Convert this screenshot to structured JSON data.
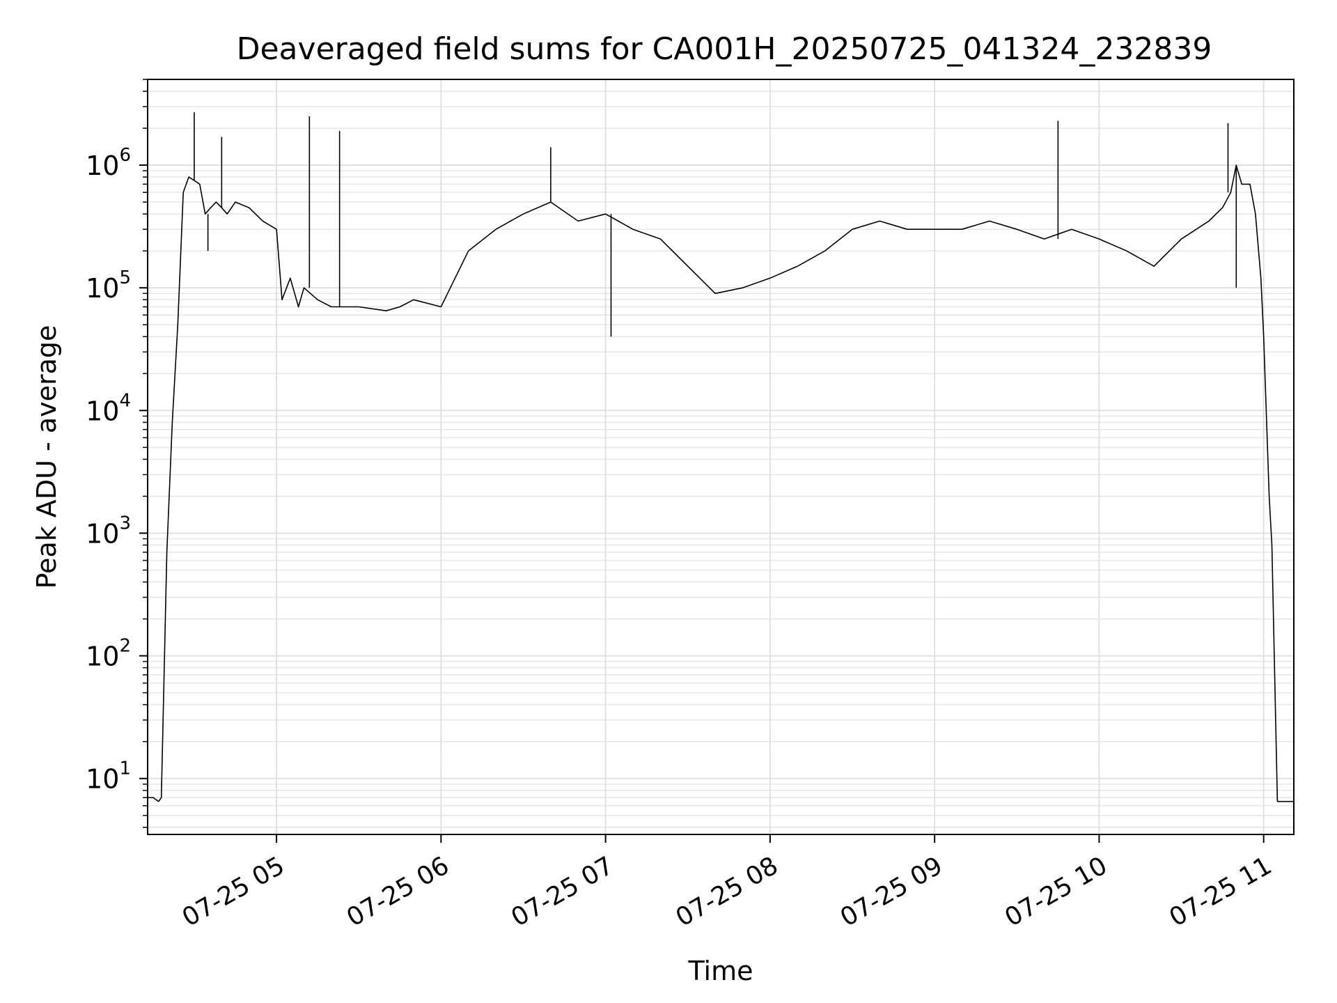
{
  "chart_data": {
    "type": "line",
    "title": "Deaveraged field sums for CA001H_20250725_041324_232839",
    "xlabel": "Time",
    "ylabel": "Peak ADU - average",
    "yscale": "log",
    "ylim": [
      3.5,
      5000000
    ],
    "xlim": [
      "07-25 04:13",
      "07-25 11:11"
    ],
    "grid": "both (major and minor), light gray",
    "x_ticks": [
      "07-25 05",
      "07-25 06",
      "07-25 07",
      "07-25 08",
      "07-25 09",
      "07-25 10",
      "07-25 11"
    ],
    "y_ticks": [
      {
        "base": "10",
        "exp": "1"
      },
      {
        "base": "10",
        "exp": "2"
      },
      {
        "base": "10",
        "exp": "3"
      },
      {
        "base": "10",
        "exp": "4"
      },
      {
        "base": "10",
        "exp": "5"
      },
      {
        "base": "10",
        "exp": "6"
      }
    ],
    "line_color": "#000000",
    "series": [
      {
        "x": [
          "07-25 04:13",
          "07-25 04:15",
          "07-25 04:17",
          "07-25 04:18",
          "07-25 04:20",
          "07-25 04:22",
          "07-25 04:24",
          "07-25 04:26",
          "07-25 04:28",
          "07-25 04:30",
          "07-25 04:32",
          "07-25 04:34",
          "07-25 04:36",
          "07-25 04:38",
          "07-25 04:40",
          "07-25 04:42",
          "07-25 04:45",
          "07-25 04:50",
          "07-25 04:55",
          "07-25 05:00",
          "07-25 05:02",
          "07-25 05:05",
          "07-25 05:08",
          "07-25 05:10",
          "07-25 05:15",
          "07-25 05:20",
          "07-25 05:30",
          "07-25 05:40",
          "07-25 05:45",
          "07-25 05:50",
          "07-25 06:00",
          "07-25 06:10",
          "07-25 06:20",
          "07-25 06:30",
          "07-25 06:40",
          "07-25 06:50",
          "07-25 07:00",
          "07-25 07:10",
          "07-25 07:20",
          "07-25 07:30",
          "07-25 07:40",
          "07-25 07:50",
          "07-25 08:00",
          "07-25 08:10",
          "07-25 08:20",
          "07-25 08:30",
          "07-25 08:40",
          "07-25 08:50",
          "07-25 09:00",
          "07-25 09:10",
          "07-25 09:20",
          "07-25 09:30",
          "07-25 09:40",
          "07-25 09:50",
          "07-25 10:00",
          "07-25 10:10",
          "07-25 10:20",
          "07-25 10:30",
          "07-25 10:40",
          "07-25 10:45",
          "07-25 10:48",
          "07-25 10:50",
          "07-25 10:52",
          "07-25 10:55",
          "07-25 10:57",
          "07-25 10:59",
          "07-25 11:00",
          "07-25 11:02",
          "07-25 11:03",
          "07-25 11:05",
          "07-25 11:07",
          "07-25 11:09",
          "07-25 11:11"
        ],
        "y": [
          7,
          7,
          6.5,
          7,
          700,
          8000,
          50000,
          600000,
          800000,
          750000,
          700000,
          400000,
          450000,
          500000,
          450000,
          400000,
          500000,
          450000,
          350000,
          300000,
          80000,
          120000,
          70000,
          100000,
          80000,
          70000,
          70000,
          65000,
          70000,
          80000,
          70000,
          200000,
          300000,
          400000,
          500000,
          350000,
          400000,
          300000,
          250000,
          150000,
          90000,
          100000,
          120000,
          150000,
          200000,
          300000,
          350000,
          300000,
          300000,
          300000,
          350000,
          300000,
          250000,
          300000,
          250000,
          200000,
          150000,
          250000,
          350000,
          450000,
          600000,
          1000000,
          700000,
          700000,
          400000,
          120000,
          40000,
          2000,
          800,
          6.5,
          6.5,
          6.5,
          6.5
        ]
      }
    ],
    "spikes": [
      {
        "x": "07-25 04:30",
        "y": 2700000
      },
      {
        "x": "07-25 04:40",
        "y": 1700000
      },
      {
        "x": "07-25 05:12",
        "y": 2500000
      },
      {
        "x": "07-25 05:23",
        "y": 1900000
      },
      {
        "x": "07-25 06:40",
        "y": 1400000
      },
      {
        "x": "07-25 09:45",
        "y": 2300000
      },
      {
        "x": "07-25 10:47",
        "y": 2200000
      }
    ],
    "dips": [
      {
        "x": "07-25 04:35",
        "y": 200000
      },
      {
        "x": "07-25 07:02",
        "y": 40000
      },
      {
        "x": "07-25 10:50",
        "y": 100000
      }
    ]
  }
}
